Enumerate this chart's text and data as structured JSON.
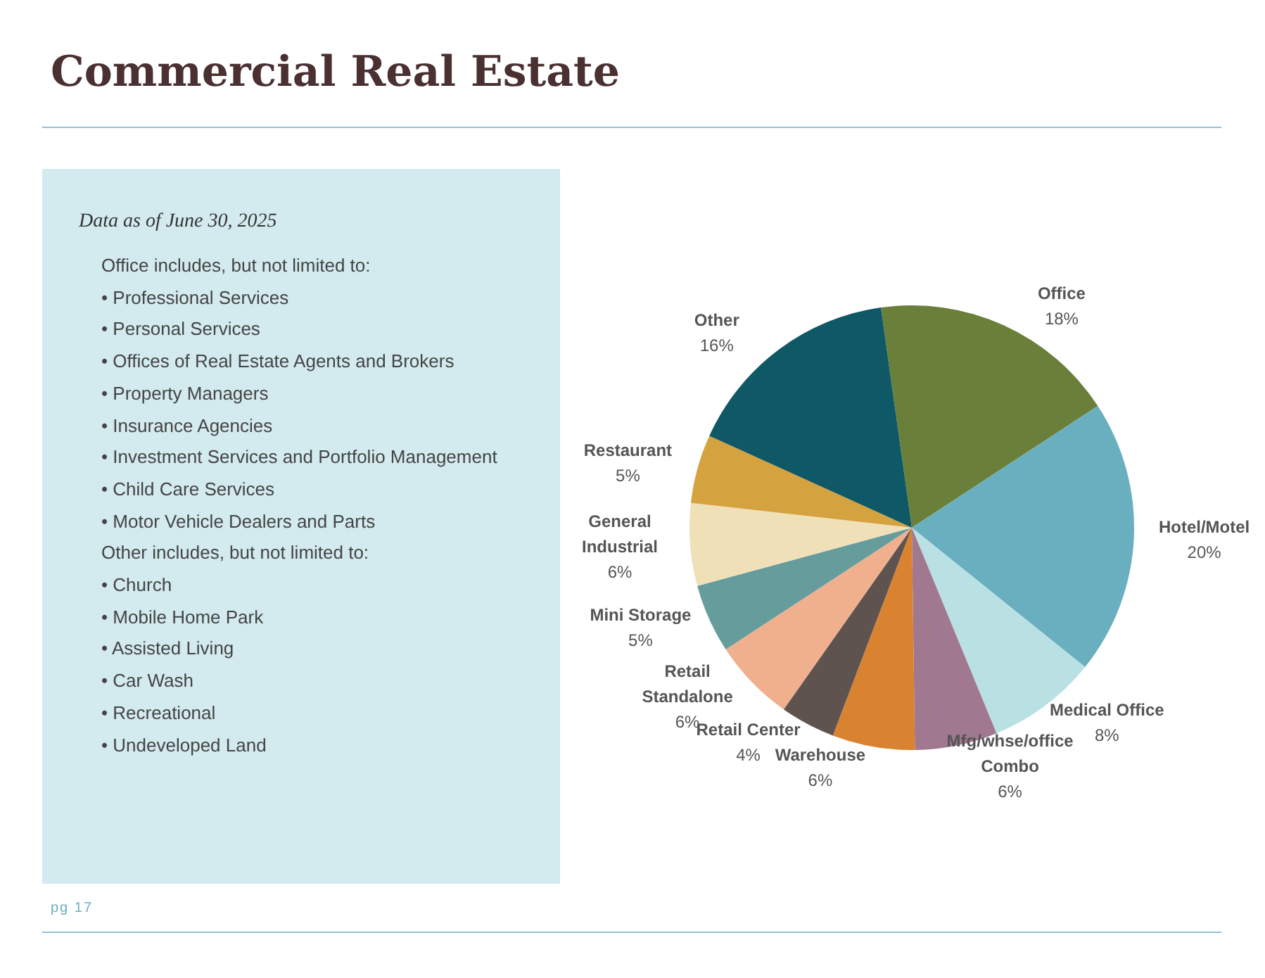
{
  "chart_data": {
    "type": "pie",
    "title": "Commercial Real Estate",
    "subtitle": "Data as of June 30, 2025",
    "categories": [
      "Office",
      "Hotel/Motel",
      "Medical Office",
      "Mfg/whse/office Combo",
      "Warehouse",
      "Retail Center",
      "Retail Standalone",
      "Mini Storage",
      "General Industrial",
      "Restaurant",
      "Other"
    ],
    "values": [
      18,
      20,
      8,
      6,
      6,
      4,
      6,
      5,
      6,
      5,
      16
    ],
    "value_labels": [
      "18%",
      "20%",
      "8%",
      "6%",
      "6%",
      "4%",
      "6%",
      "5%",
      "6%",
      "5%",
      "16%"
    ],
    "colors": [
      "#6a7f3a",
      "#6aafbf",
      "#b9e0e3",
      "#a0788f",
      "#d98230",
      "#5f5350",
      "#f0b08e",
      "#669d9c",
      "#f0e0b8",
      "#d4a23f",
      "#0f5866"
    ],
    "annotations": [
      "Office includes, but not limited to:",
      "• Professional Services",
      "• Personal Services",
      "• Offices of Real Estate Agents and Brokers",
      "• Property Managers",
      "• Insurance Agencies",
      "• Investment Services and Portfolio Management",
      "• Child Care Services",
      "• Motor Vehicle Dealers and Parts",
      "Other includes, but not limited to:",
      "• Church",
      "• Mobile Home Park",
      "• Assisted Living",
      "• Car Wash",
      "• Recreational",
      "• Undeveloped Land",
      "pg 17"
    ]
  }
}
